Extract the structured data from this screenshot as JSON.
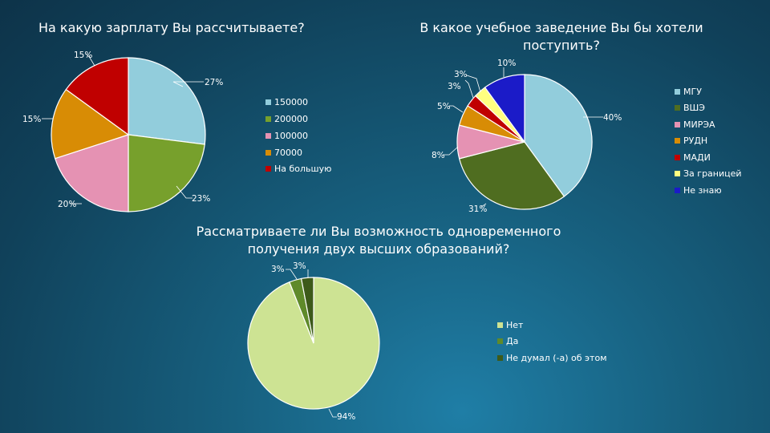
{
  "chart_data": [
    {
      "type": "pie",
      "title": "На какую зарплату Вы рассчитываете?",
      "legend_placement": "right",
      "categories": [
        "150000",
        "200000",
        "100000",
        "70000",
        "На большую"
      ],
      "values": [
        27,
        23,
        20,
        15,
        15
      ],
      "labels": [
        "27%",
        "23%",
        "20%",
        "15%",
        "15%"
      ],
      "colors": [
        "#92cddc",
        "#77a02c",
        "#e592b3",
        "#d88c05",
        "#c00000"
      ]
    },
    {
      "type": "pie",
      "title": "В какое учебное заведение Вы бы хотели поступить?",
      "legend_placement": "right",
      "categories": [
        "МГУ",
        "ВШЭ",
        "МИРЭА",
        "РУДН",
        "МАДИ",
        "За границей",
        "Не знаю"
      ],
      "values": [
        40,
        31,
        8,
        5,
        3,
        3,
        10
      ],
      "labels": [
        "40%",
        "31%",
        "8%",
        "5%",
        "3%",
        "3%",
        "10%"
      ],
      "colors": [
        "#92cddc",
        "#4f6d20",
        "#e592b3",
        "#d88c05",
        "#c00000",
        "#ffff80",
        "#1b1bc8"
      ]
    },
    {
      "type": "pie",
      "title": "Рассматриваете ли Вы возможность одновременного получения двух высших образований?",
      "legend_placement": "right",
      "categories": [
        "Нет",
        "Да",
        "Не думал (-а) об этом"
      ],
      "values": [
        94,
        3,
        3
      ],
      "labels": [
        "94%",
        "3%",
        "3%"
      ],
      "colors": [
        "#cde393",
        "#5f8a2a",
        "#3d5a1a"
      ]
    }
  ]
}
